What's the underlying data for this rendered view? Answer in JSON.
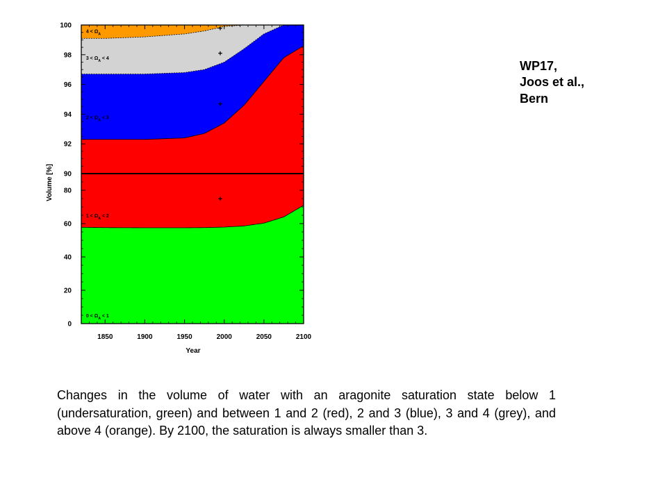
{
  "credit": {
    "lines": [
      "WP17,",
      "Joos et al.,",
      "Bern"
    ]
  },
  "caption": "Changes in the volume of water with an aragonite saturation state below 1 (undersaturation, green) and between 1 and 2 (red), 2 and 3 (blue), 3 and 4 (grey), and above 4 (orange). By 2100, the saturation is always smaller than 3.",
  "chart_data": {
    "type": "area",
    "xlabel": "Year",
    "ylabel": "Volume [%]",
    "xlim": [
      1820,
      2100
    ],
    "x_ticks": [
      1850,
      1900,
      1950,
      2000,
      2050,
      2100
    ],
    "y_axis_segments": [
      {
        "range": [
          0,
          90
        ],
        "ticks": [
          0,
          20,
          40,
          60,
          80
        ]
      },
      {
        "range": [
          90,
          100
        ],
        "ticks": [
          90,
          92,
          94,
          96,
          98,
          100
        ]
      }
    ],
    "x": [
      1820,
      1850,
      1900,
      1950,
      1975,
      2000,
      2025,
      2050,
      2075,
      2100
    ],
    "boundaries": {
      "green_red": [
        57.8,
        57.6,
        57.5,
        57.5,
        57.6,
        57.9,
        58.6,
        60.3,
        64.0,
        71.0
      ],
      "red_blue": [
        92.3,
        92.3,
        92.3,
        92.4,
        92.7,
        93.4,
        94.6,
        96.2,
        97.8,
        98.6
      ],
      "blue_grey": [
        96.7,
        96.7,
        96.7,
        96.8,
        97.0,
        97.5,
        98.4,
        99.4,
        100.0,
        100.0
      ],
      "grey_orange": [
        99.1,
        99.1,
        99.2,
        99.4,
        99.6,
        99.9,
        100.0,
        100.0,
        100.0,
        100.0
      ]
    },
    "series": [
      {
        "name": "0 < Ω_A < 1",
        "color": "#00ff00"
      },
      {
        "name": "1 < Ω_A < 2",
        "color": "#ff0000"
      },
      {
        "name": "2 < Ω_A < 3",
        "color": "#0000ff"
      },
      {
        "name": "3 < Ω_A < 4",
        "color": "#d3d3d3"
      },
      {
        "name": "4 < Ω_A",
        "color": "#ff9900"
      }
    ],
    "region_labels": [
      {
        "text": "0 < Ω",
        "sub": "A",
        "tail": " < 1",
        "x": 1826,
        "y": 5
      },
      {
        "text": "1 < Ω",
        "sub": "A",
        "tail": " < 2",
        "x": 1826,
        "y": 65
      },
      {
        "text": "2 < Ω",
        "sub": "A",
        "tail": " < 3",
        "x": 1826,
        "y": 93.8
      },
      {
        "text": "3 < Ω",
        "sub": "A",
        "tail": " < 4",
        "x": 1826,
        "y": 97.8
      },
      {
        "text": "4 < Ω",
        "sub": "A",
        "tail": "",
        "x": 1826,
        "y": 99.6
      }
    ],
    "markers": [
      {
        "symbol": "+",
        "x": 1995,
        "y": 75
      },
      {
        "symbol": "+",
        "x": 1995,
        "y": 94.7
      },
      {
        "symbol": "+",
        "x": 1995,
        "y": 98.1
      },
      {
        "symbol": "+",
        "x": 1995,
        "y": 99.8
      }
    ],
    "grid": false,
    "legend": "none"
  }
}
